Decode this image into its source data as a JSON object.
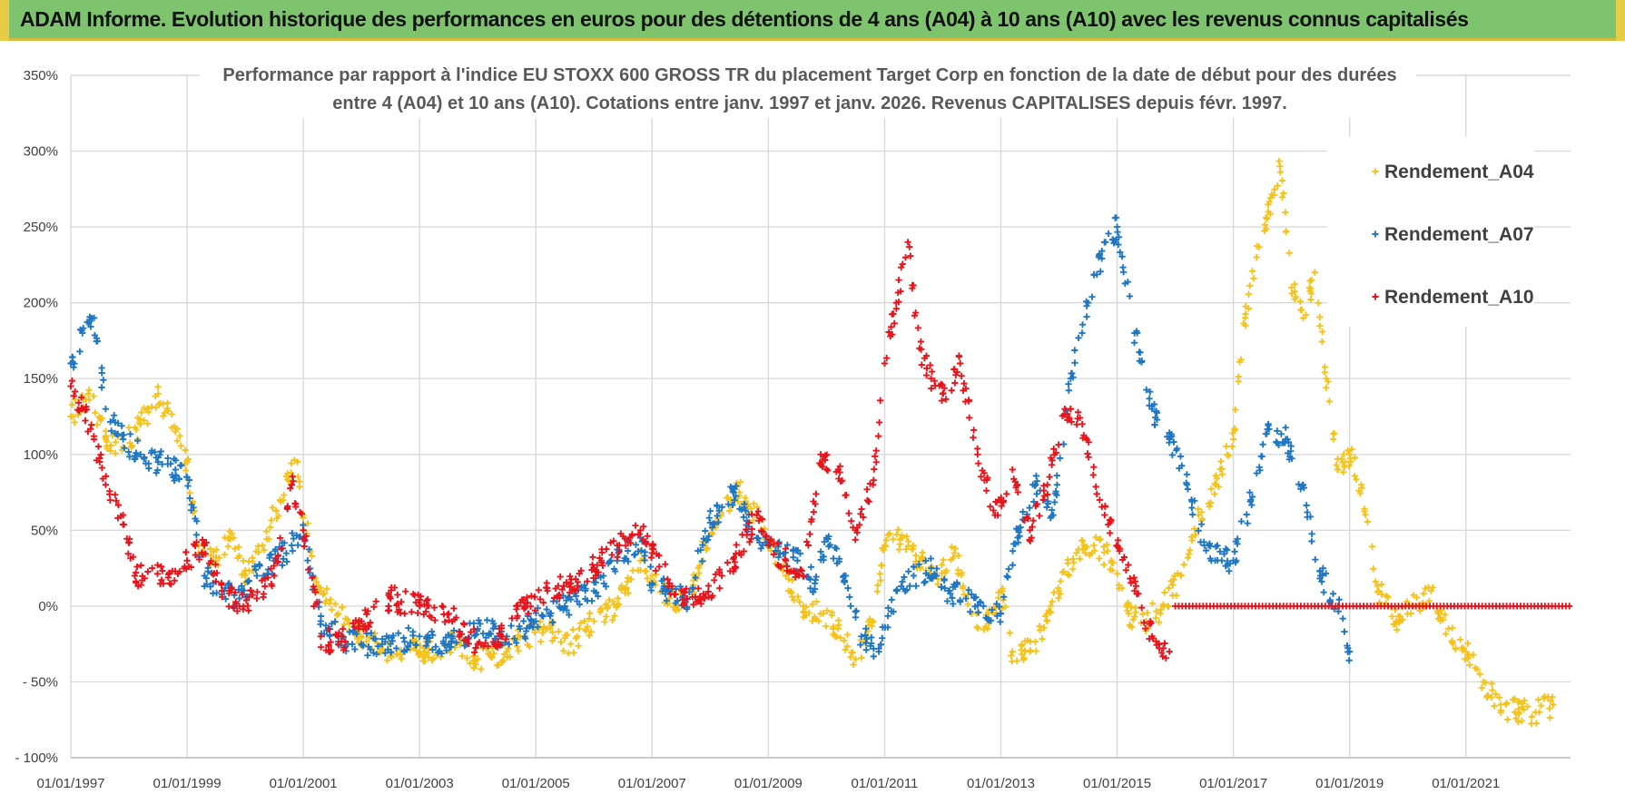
{
  "header": {
    "title": "ADAM Informe. Evolution historique des performances en euros pour des détentions de 4 ans (A04) à 10 ans (A10) avec les revenus connus capitalisés"
  },
  "chart_data": {
    "type": "scatter",
    "title_line1": "Performance par rapport à l'indice EU STOXX 600 GROSS TR  du placement Target Corp en fonction de la date de début pour des durées",
    "title_line2": "entre 4 (A04) et 10 ans (A10).  Cotations entre janv. 1997 et janv. 2026. Revenus CAPITALISES depuis févr. 1997.",
    "xlabel": "",
    "ylabel": "",
    "xlim": [
      1997.0,
      2022.8
    ],
    "ylim": [
      -100,
      350
    ],
    "y_ticks": [
      {
        "value": 350,
        "label": "350%"
      },
      {
        "value": 300,
        "label": "300%"
      },
      {
        "value": 250,
        "label": "250%"
      },
      {
        "value": 200,
        "label": "200%"
      },
      {
        "value": 150,
        "label": "150%"
      },
      {
        "value": 100,
        "label": "100%"
      },
      {
        "value": 50,
        "label": "50%"
      },
      {
        "value": 0,
        "label": "0%"
      },
      {
        "value": -50,
        "label": "- 50%"
      },
      {
        "value": -100,
        "label": "- 100%"
      }
    ],
    "x_ticks": [
      {
        "value": 1997.0,
        "label": "01/01/1997"
      },
      {
        "value": 1999.0,
        "label": "01/01/1999"
      },
      {
        "value": 2001.0,
        "label": "01/01/2001"
      },
      {
        "value": 2003.0,
        "label": "01/01/2003"
      },
      {
        "value": 2005.0,
        "label": "01/01/2005"
      },
      {
        "value": 2007.0,
        "label": "01/01/2007"
      },
      {
        "value": 2009.0,
        "label": "01/01/2009"
      },
      {
        "value": 2011.0,
        "label": "01/01/2011"
      },
      {
        "value": 2013.0,
        "label": "01/01/2013"
      },
      {
        "value": 2015.0,
        "label": "01/01/2015"
      },
      {
        "value": 2017.0,
        "label": "01/01/2017"
      },
      {
        "value": 2019.0,
        "label": "01/01/2019"
      },
      {
        "value": 2021.0,
        "label": "01/01/2021"
      }
    ],
    "grid": true,
    "legend_position": "top-right",
    "series": [
      {
        "name": "Rendement_A04",
        "color": "#f5c21b",
        "x": [
          1997.0,
          1997.3,
          1997.6,
          1997.9,
          1998.2,
          1998.5,
          1998.8,
          1999.0,
          1999.2,
          1999.5,
          1999.8,
          2000.0,
          2000.3,
          2000.6,
          2000.9,
          2001.0,
          2001.3,
          2001.6,
          2002.0,
          2002.5,
          2003.0,
          2003.5,
          2004.0,
          2004.5,
          2004.8,
          2005.2,
          2005.6,
          2006.0,
          2006.4,
          2006.8,
          2007.0,
          2007.3,
          2007.6,
          2007.9,
          2008.2,
          2008.5,
          2008.8,
          2009.0,
          2009.3,
          2009.6,
          2009.9,
          2010.2,
          2010.5,
          2010.8,
          2011.0,
          2011.3,
          2011.6,
          2011.9,
          2012.2,
          2012.5,
          2012.8,
          2013.0,
          2013.2,
          2013.5,
          2013.8,
          2014.0,
          2014.3,
          2014.6,
          2014.9,
          2015.2,
          2015.5,
          2015.8,
          2016.1,
          2016.4,
          2016.7,
          2017.0,
          2017.2,
          2017.4,
          2017.6,
          2017.8,
          2018.0,
          2018.2,
          2018.4,
          2018.6,
          2018.8,
          2019.0,
          2019.2,
          2019.5,
          2019.8,
          2020.1,
          2020.4,
          2020.7,
          2021.0,
          2021.3,
          2021.6,
          2021.9,
          2022.2,
          2022.5
        ],
        "values": [
          125,
          140,
          110,
          105,
          120,
          140,
          115,
          95,
          40,
          30,
          45,
          20,
          40,
          70,
          95,
          60,
          10,
          -5,
          -20,
          -30,
          -30,
          -25,
          -35,
          -30,
          -20,
          -15,
          -25,
          -10,
          0,
          30,
          20,
          5,
          0,
          40,
          65,
          75,
          60,
          45,
          20,
          0,
          -5,
          -15,
          -35,
          -10,
          40,
          45,
          30,
          20,
          35,
          -5,
          -10,
          10,
          -30,
          -30,
          -10,
          10,
          35,
          40,
          30,
          -5,
          -10,
          0,
          20,
          60,
          80,
          110,
          190,
          230,
          260,
          290,
          210,
          190,
          220,
          150,
          90,
          100,
          80,
          10,
          -10,
          0,
          10,
          -15,
          -30,
          -50,
          -65,
          -70,
          -70,
          -65
        ]
      },
      {
        "name": "Rendement_A07",
        "color": "#1f77c4",
        "x": [
          1997.0,
          1997.2,
          1997.4,
          1997.6,
          1997.9,
          1998.2,
          1998.5,
          1998.8,
          1999.0,
          1999.3,
          1999.6,
          1999.9,
          2000.2,
          2000.5,
          2000.8,
          2001.0,
          2001.3,
          2001.6,
          2002.0,
          2002.5,
          2003.0,
          2003.5,
          2004.0,
          2004.5,
          2005.0,
          2005.5,
          2006.0,
          2006.4,
          2006.8,
          2007.0,
          2007.3,
          2007.6,
          2008.0,
          2008.4,
          2008.8,
          2009.2,
          2009.5,
          2009.8,
          2010.0,
          2010.3,
          2010.6,
          2010.9,
          2011.2,
          2011.5,
          2011.8,
          2012.1,
          2012.4,
          2012.7,
          2013.0,
          2013.3,
          2013.6,
          2013.9,
          2014.2,
          2014.5,
          2014.8,
          2015.0,
          2015.3,
          2015.6,
          2015.9,
          2016.2,
          2016.5,
          2016.8,
          2017.0,
          2017.3,
          2017.6,
          2017.9,
          2018.2,
          2018.5,
          2018.8,
          2019.0
        ],
        "values": [
          160,
          180,
          190,
          130,
          110,
          100,
          95,
          90,
          85,
          20,
          10,
          5,
          20,
          30,
          40,
          50,
          -10,
          -20,
          -25,
          -25,
          -20,
          -25,
          -15,
          -20,
          -10,
          0,
          10,
          30,
          45,
          15,
          10,
          5,
          55,
          75,
          45,
          35,
          30,
          15,
          45,
          20,
          -20,
          -30,
          10,
          20,
          25,
          10,
          5,
          0,
          -5,
          50,
          80,
          60,
          150,
          200,
          240,
          250,
          180,
          130,
          110,
          80,
          40,
          30,
          30,
          70,
          120,
          110,
          80,
          20,
          0,
          -30
        ]
      },
      {
        "name": "Rendement_A10",
        "color": "#e8141c",
        "x": [
          1997.0,
          1997.2,
          1997.4,
          1997.6,
          1997.9,
          1998.1,
          1998.4,
          1998.7,
          1999.0,
          1999.3,
          1999.6,
          1999.9,
          2000.2,
          2000.5,
          2000.8,
          2001.0,
          2001.3,
          2001.6,
          2002.0,
          2002.5,
          2003.0,
          2003.5,
          2004.0,
          2004.4,
          2004.8,
          2005.2,
          2005.6,
          2006.0,
          2006.4,
          2006.8,
          2007.0,
          2007.3,
          2007.6,
          2007.9,
          2008.2,
          2008.5,
          2008.8,
          2009.0,
          2009.3,
          2009.6,
          2009.9,
          2010.2,
          2010.5,
          2010.8,
          2011.0,
          2011.2,
          2011.4,
          2011.6,
          2011.8,
          2012.0,
          2012.3,
          2012.6,
          2012.9,
          2013.2,
          2013.5,
          2013.8,
          2014.1,
          2014.4,
          2014.7,
          2015.0,
          2015.3,
          2015.6,
          2015.9
        ],
        "values": [
          145,
          130,
          110,
          80,
          60,
          20,
          25,
          15,
          30,
          40,
          10,
          0,
          5,
          20,
          80,
          50,
          -20,
          -25,
          -10,
          5,
          0,
          -5,
          -25,
          -20,
          0,
          10,
          15,
          25,
          40,
          50,
          35,
          15,
          5,
          5,
          20,
          35,
          60,
          40,
          30,
          20,
          100,
          90,
          50,
          80,
          160,
          200,
          240,
          170,
          150,
          140,
          160,
          100,
          60,
          90,
          50,
          80,
          130,
          120,
          70,
          40,
          10,
          -20,
          -30
        ]
      }
    ],
    "zero_line": {
      "x_start": 2016.0,
      "x_end": 2022.8,
      "value": 0,
      "color": "#e8141c"
    }
  }
}
